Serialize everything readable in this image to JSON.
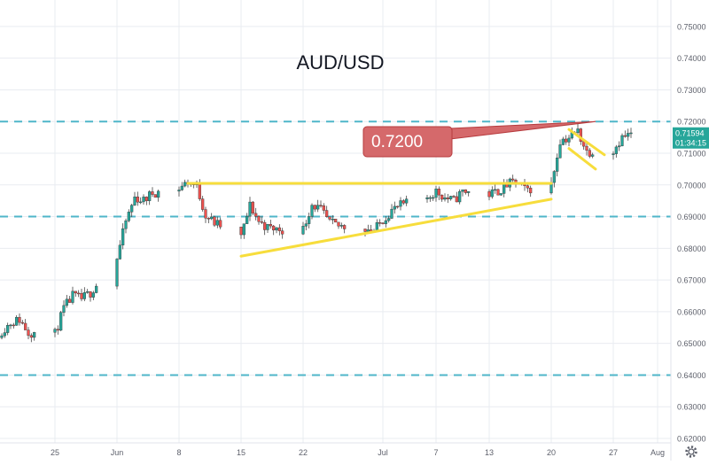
{
  "chart_data": {
    "type": "candlestick",
    "title": "AUD/USD",
    "ylim": [
      0.62,
      0.755
    ],
    "y_ticks": [
      "0.75000",
      "0.74000",
      "0.73000",
      "0.72000",
      "0.71000",
      "0.70000",
      "0.69000",
      "0.68000",
      "0.67000",
      "0.66000",
      "0.65000",
      "0.64000",
      "0.63000",
      "0.62000"
    ],
    "x_ticks": [
      {
        "label": "25",
        "date": "2020-05-25"
      },
      {
        "label": "Jun",
        "date": "2020-06-01"
      },
      {
        "label": "8",
        "date": "2020-06-08"
      },
      {
        "label": "15",
        "date": "2020-06-15"
      },
      {
        "label": "22",
        "date": "2020-06-22"
      },
      {
        "label": "Jul",
        "date": "2020-07-01"
      },
      {
        "label": "7",
        "date": "2020-07-07"
      },
      {
        "label": "13",
        "date": "2020-07-13"
      },
      {
        "label": "20",
        "date": "2020-07-20"
      },
      {
        "label": "27",
        "date": "2020-07-27"
      },
      {
        "label": "Aug",
        "date": "2020-08-01"
      }
    ],
    "x_range": [
      "2020-05-19",
      "2020-08-02"
    ],
    "horizontal_levels": [
      0.72,
      0.69,
      0.64
    ],
    "last_price": "0.71594",
    "countdown": "01:34:15",
    "annotation": {
      "text": "0.7200",
      "points_to": {
        "date": "2020-07-25",
        "value": 0.72
      }
    },
    "trendlines": [
      {
        "from": {
          "date": "2020-06-09",
          "value": 0.7005
        },
        "to": {
          "date": "2020-07-20",
          "value": 0.7005
        }
      },
      {
        "from": {
          "date": "2020-06-15",
          "value": 0.6775
        },
        "to": {
          "date": "2020-07-20",
          "value": 0.6955
        }
      },
      {
        "from": {
          "date": "2020-07-22",
          "value": 0.7175
        },
        "to": {
          "date": "2020-07-26",
          "value": 0.7095
        }
      },
      {
        "from": {
          "date": "2020-07-22",
          "value": 0.7115
        },
        "to": {
          "date": "2020-07-25",
          "value": 0.705
        }
      }
    ],
    "candles_path": [
      [
        "2020-05-19",
        0.654
      ],
      [
        "2020-05-20",
        0.6565
      ],
      [
        "2020-05-21",
        0.6575
      ],
      [
        "2020-05-22",
        0.6535
      ],
      [
        "2020-05-25",
        0.653
      ],
      [
        "2020-05-26",
        0.661
      ],
      [
        "2020-05-27",
        0.665
      ],
      [
        "2020-05-28",
        0.664
      ],
      [
        "2020-05-29",
        0.666
      ],
      [
        "2020-06-01",
        0.677
      ],
      [
        "2020-06-02",
        0.6885
      ],
      [
        "2020-06-03",
        0.696
      ],
      [
        "2020-06-04",
        0.695
      ],
      [
        "2020-06-05",
        0.6975
      ],
      [
        "2020-06-08",
        0.699
      ],
      [
        "2020-06-09",
        0.701
      ],
      [
        "2020-06-10",
        0.6995
      ],
      [
        "2020-06-11",
        0.6905
      ],
      [
        "2020-06-12",
        0.688
      ],
      [
        "2020-06-15",
        0.6835
      ],
      [
        "2020-06-16",
        0.6935
      ],
      [
        "2020-06-17",
        0.6885
      ],
      [
        "2020-06-18",
        0.6865
      ],
      [
        "2020-06-19",
        0.686
      ],
      [
        "2020-06-22",
        0.686
      ],
      [
        "2020-06-23",
        0.694
      ],
      [
        "2020-06-24",
        0.692
      ],
      [
        "2020-06-25",
        0.688
      ],
      [
        "2020-06-26",
        0.687
      ],
      [
        "2020-06-29",
        0.6865
      ],
      [
        "2020-06-30",
        0.6855
      ],
      [
        "2020-07-01",
        0.689
      ],
      [
        "2020-07-02",
        0.692
      ],
      [
        "2020-07-03",
        0.6935
      ],
      [
        "2020-07-06",
        0.696
      ],
      [
        "2020-07-07",
        0.698
      ],
      [
        "2020-07-08",
        0.696
      ],
      [
        "2020-07-09",
        0.695
      ],
      [
        "2020-07-10",
        0.698
      ],
      [
        "2020-07-13",
        0.697
      ],
      [
        "2020-07-14",
        0.698
      ],
      [
        "2020-07-15",
        0.7
      ],
      [
        "2020-07-16",
        0.701
      ],
      [
        "2020-07-17",
        0.6985
      ],
      [
        "2020-07-20",
        0.7
      ],
      [
        "2020-07-21",
        0.714
      ],
      [
        "2020-07-22",
        0.715
      ],
      [
        "2020-07-23",
        0.717
      ],
      [
        "2020-07-24",
        0.7105
      ],
      [
        "2020-07-27",
        0.711
      ],
      [
        "2020-07-28",
        0.715
      ],
      [
        "2020-07-29",
        0.7159
      ]
    ]
  },
  "colors": {
    "up": "#26a69a",
    "down": "#ef5350",
    "level": "#4fb6c9",
    "trend": "#f7dd3c",
    "callout_fill": "#d5696b",
    "callout_stroke": "#b73b3e",
    "price_tag": "#26a69a",
    "axis_text": "#5d606b",
    "grid": "#e9ecf1"
  },
  "icons": {
    "settings": "gear-icon"
  }
}
